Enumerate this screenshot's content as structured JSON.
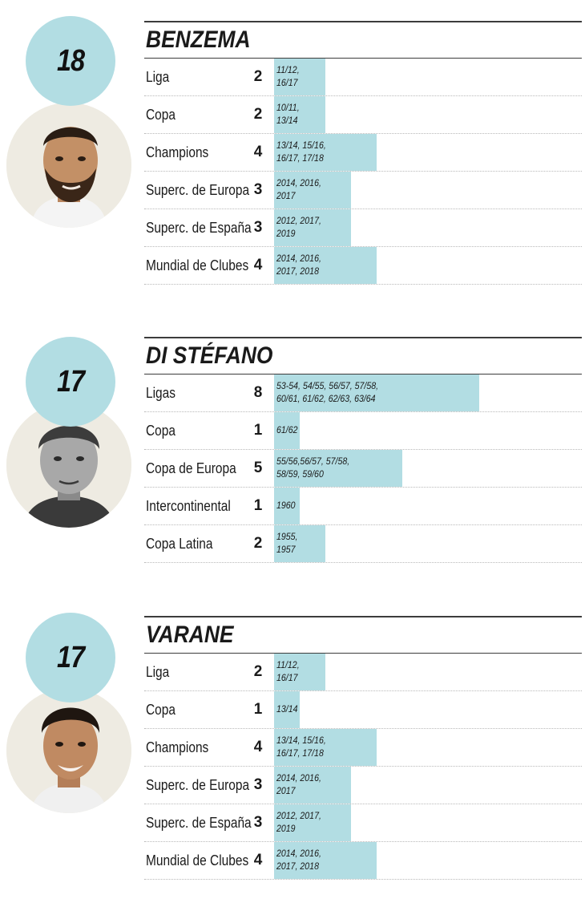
{
  "chart_data": {
    "type": "bar",
    "players": [
      {
        "name": "BENZEMA",
        "total": "18",
        "rows": [
          {
            "label": "Liga",
            "count": "2",
            "value": 2,
            "seasons": "11/12,\n16/17"
          },
          {
            "label": "Copa",
            "count": "2",
            "value": 2,
            "seasons": "10/11,\n13/14"
          },
          {
            "label": "Champions",
            "count": "4",
            "value": 4,
            "seasons": "13/14, 15/16,\n16/17, 17/18"
          },
          {
            "label": "Superc. de Europa",
            "count": "3",
            "value": 3,
            "seasons": "2014, 2016,\n2017"
          },
          {
            "label": "Superc. de España",
            "count": "3",
            "value": 3,
            "seasons": "2012, 2017,\n2019"
          },
          {
            "label": "Mundial de Clubes",
            "count": "4",
            "value": 4,
            "seasons": "2014, 2016,\n2017, 2018"
          }
        ]
      },
      {
        "name": "DI STÉFANO",
        "total": "17",
        "rows": [
          {
            "label": "Ligas",
            "count": "8",
            "value": 8,
            "seasons": "53-54, 54/55, 56/57, 57/58,\n60/61, 61/62, 62/63, 63/64"
          },
          {
            "label": "Copa",
            "count": "1",
            "value": 1,
            "seasons": "61/62"
          },
          {
            "label": "Copa de Europa",
            "count": "5",
            "value": 5,
            "seasons": "55/56,56/57, 57/58,\n58/59, 59/60"
          },
          {
            "label": "Intercontinental",
            "count": "1",
            "value": 1,
            "seasons": "1960"
          },
          {
            "label": "Copa Latina",
            "count": "2",
            "value": 2,
            "seasons": "1955,\n1957"
          }
        ]
      },
      {
        "name": "VARANE",
        "total": "17",
        "rows": [
          {
            "label": "Liga",
            "count": "2",
            "value": 2,
            "seasons": "11/12,\n16/17"
          },
          {
            "label": "Copa",
            "count": "1",
            "value": 1,
            "seasons": "13/14"
          },
          {
            "label": "Champions",
            "count": "4",
            "value": 4,
            "seasons": "13/14, 15/16,\n16/17, 17/18"
          },
          {
            "label": "Superc. de Europa",
            "count": "3",
            "value": 3,
            "seasons": "2014, 2016,\n2017"
          },
          {
            "label": "Superc. de España",
            "count": "3",
            "value": 3,
            "seasons": "2012, 2017,\n2019"
          },
          {
            "label": "Mundial de Clubes",
            "count": "4",
            "value": 4,
            "seasons": "2014, 2016,\n2017, 2018"
          }
        ]
      }
    ]
  },
  "colors": {
    "bar": "#b2dde3",
    "badge": "#b2dde3",
    "photo_bg": "#eeebe2",
    "rule": "#3c3c3c"
  },
  "icons": [
    "player-photo-icon",
    "player-photo-icon",
    "player-photo-icon"
  ]
}
